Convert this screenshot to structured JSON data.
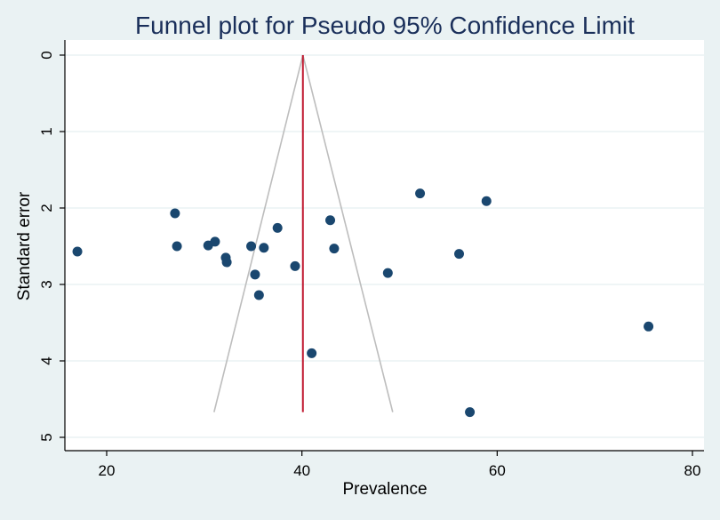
{
  "chart_data": {
    "type": "scatter",
    "title": "Funnel plot for Pseudo 95% Confidence Limit",
    "xlabel": "Prevalence",
    "ylabel": "Standard error",
    "xlim": [
      16,
      81
    ],
    "ylim": [
      5,
      0
    ],
    "y_reversed": true,
    "x_ticks": [
      20,
      40,
      60,
      80
    ],
    "y_ticks": [
      0,
      1,
      2,
      3,
      4,
      5
    ],
    "grid": "horizontal",
    "pooled_estimate": 40.1,
    "funnel": {
      "apex": [
        40.1,
        0
      ],
      "lower_left": [
        31,
        4.67
      ],
      "lower_right": [
        49.3,
        4.67
      ]
    },
    "points": [
      {
        "x": 17.0,
        "y": 2.57
      },
      {
        "x": 27.0,
        "y": 2.07
      },
      {
        "x": 27.2,
        "y": 2.5
      },
      {
        "x": 30.4,
        "y": 2.49
      },
      {
        "x": 31.1,
        "y": 2.44
      },
      {
        "x": 32.2,
        "y": 2.65
      },
      {
        "x": 32.3,
        "y": 2.71
      },
      {
        "x": 34.8,
        "y": 2.5
      },
      {
        "x": 35.2,
        "y": 2.87
      },
      {
        "x": 35.6,
        "y": 3.14
      },
      {
        "x": 36.1,
        "y": 2.52
      },
      {
        "x": 37.5,
        "y": 2.26
      },
      {
        "x": 39.3,
        "y": 2.76
      },
      {
        "x": 41.0,
        "y": 3.9
      },
      {
        "x": 42.9,
        "y": 2.16
      },
      {
        "x": 43.3,
        "y": 2.53
      },
      {
        "x": 48.8,
        "y": 2.85
      },
      {
        "x": 52.1,
        "y": 1.81
      },
      {
        "x": 56.1,
        "y": 2.6
      },
      {
        "x": 58.9,
        "y": 1.91
      },
      {
        "x": 75.5,
        "y": 3.55
      },
      {
        "x": 57.2,
        "y": 4.67
      }
    ],
    "colors": {
      "background": "#eaf2f3",
      "plot_area": "#ffffff",
      "title": "#1a2f5a",
      "points": "#1a476f",
      "funnel": "#bdbdbd",
      "pooled_line": "#c0182f",
      "grid": "#eaf2f3",
      "axis": "#000000"
    }
  }
}
